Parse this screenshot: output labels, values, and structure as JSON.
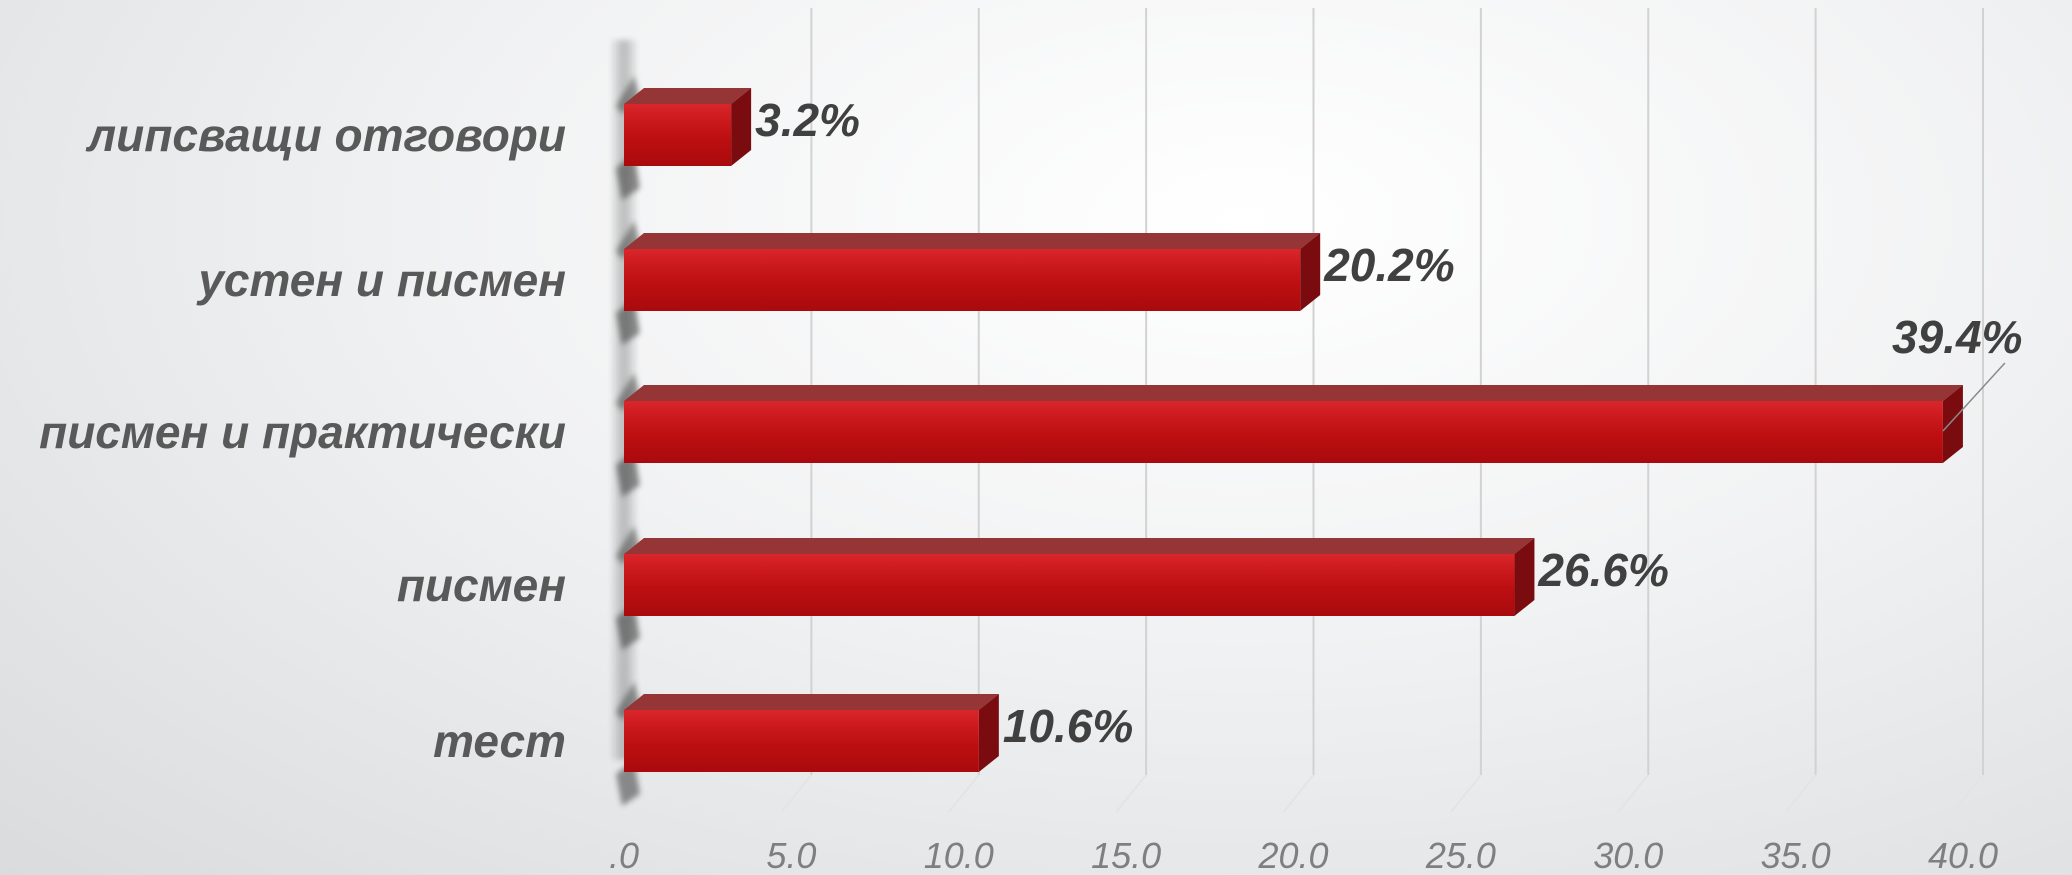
{
  "chart_data": {
    "type": "bar",
    "orientation": "horizontal",
    "style": "3d",
    "categories": [
      "тест",
      "писмен",
      "писмен и практически",
      "устен и писмен",
      "липсващи отговори"
    ],
    "values": [
      10.6,
      26.6,
      39.4,
      20.2,
      3.2
    ],
    "data_labels": [
      "10.6%",
      "26.6%",
      "39.4%",
      "20.2%",
      "3.2%"
    ],
    "x_ticks": [
      ".0",
      "5.0",
      "10.0",
      "15.0",
      "20.0",
      "25.0",
      "30.0",
      "35.0",
      "40.0"
    ],
    "xlim": [
      0,
      40
    ],
    "grid": true,
    "legend": "none",
    "bar_color": "#c00000",
    "title": "",
    "xlabel": "",
    "ylabel": ""
  }
}
